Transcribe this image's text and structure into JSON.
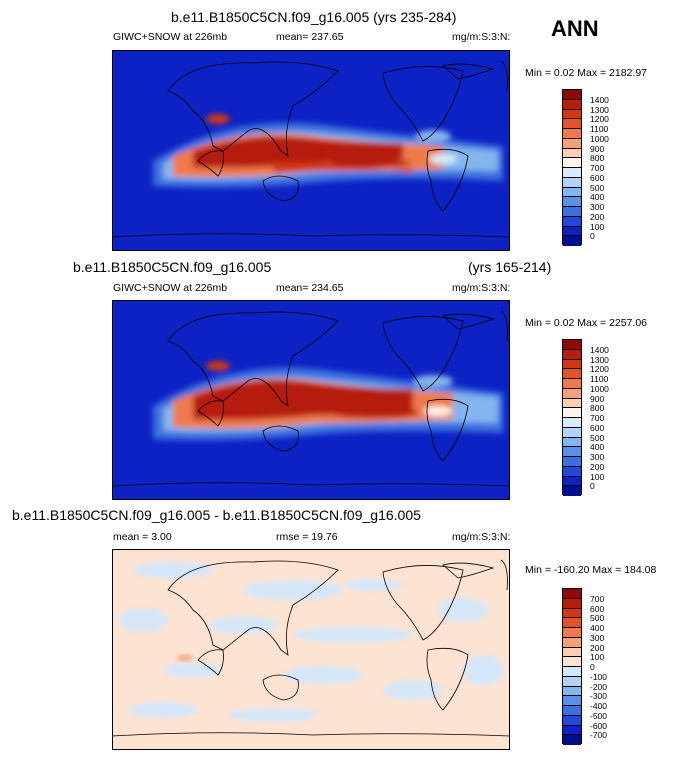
{
  "panels": [
    {
      "title": "b.e11.B1850C5CN.f09_g16.005 (yrs 235-284)",
      "field_label": "GIWC+SNOW at 226mb",
      "stat_label": "mean= 237.65",
      "units_label": "mg/m:S:3:N:",
      "minmax_label": "Min =  0.02 Max = 2182.97",
      "colorbar": {
        "labels": [
          "1400",
          "1300",
          "1200",
          "1100",
          "1000",
          "900",
          "800",
          "700",
          "600",
          "500",
          "400",
          "300",
          "200",
          "100",
          "0"
        ],
        "colors": [
          "#8c0a00",
          "#b51e0a",
          "#d23714",
          "#e25428",
          "#ee7a4c",
          "#f6a07a",
          "#fbcfb3",
          "#fff4ea",
          "#d8ebfa",
          "#b1d3f5",
          "#83b5ee",
          "#5a91e8",
          "#3c70e0",
          "#2347d8",
          "#0d22c4",
          "#000f8f"
        ]
      }
    },
    {
      "title_left": "b.e11.B1850C5CN.f09_g16.005",
      "title_right": "(yrs 165-214)",
      "field_label": "GIWC+SNOW at 226mb",
      "stat_label": "mean= 234.65",
      "units_label": "mg/m:S:3:N:",
      "minmax_label": "Min =  0.02 Max = 2257.06",
      "colorbar": {
        "labels": [
          "1400",
          "1300",
          "1200",
          "1100",
          "1000",
          "900",
          "800",
          "700",
          "600",
          "500",
          "400",
          "300",
          "200",
          "100",
          "0"
        ],
        "colors": [
          "#8c0a00",
          "#b51e0a",
          "#d23714",
          "#e25428",
          "#ee7a4c",
          "#f6a07a",
          "#fbcfb3",
          "#fff4ea",
          "#d8ebfa",
          "#b1d3f5",
          "#83b5ee",
          "#5a91e8",
          "#3c70e0",
          "#2347d8",
          "#0d22c4",
          "#000f8f"
        ]
      }
    },
    {
      "title": "b.e11.B1850C5CN.f09_g16.005 - b.e11.B1850C5CN.f09_g16.005",
      "stat_label": "mean =   3.00",
      "rmse_label": "rmse =  19.76",
      "units_label": "mg/m:S:3:N:",
      "minmax_label": "Min = -160.20 Max = 184.08",
      "colorbar": {
        "labels": [
          "700",
          "600",
          "500",
          "400",
          "300",
          "200",
          "100",
          "0",
          "-100",
          "-200",
          "-300",
          "-400",
          "-500",
          "-600",
          "-700"
        ],
        "colors": [
          "#8c0a00",
          "#b51e0a",
          "#d23714",
          "#e25428",
          "#ee7a4c",
          "#f6a07a",
          "#fbcfb3",
          "#fde3d2",
          "#d6e7fa",
          "#b1d3f5",
          "#83b5ee",
          "#5a91e8",
          "#3c70e0",
          "#2347d8",
          "#0d22c4",
          "#000f8f"
        ]
      }
    }
  ],
  "season": "ANN"
}
